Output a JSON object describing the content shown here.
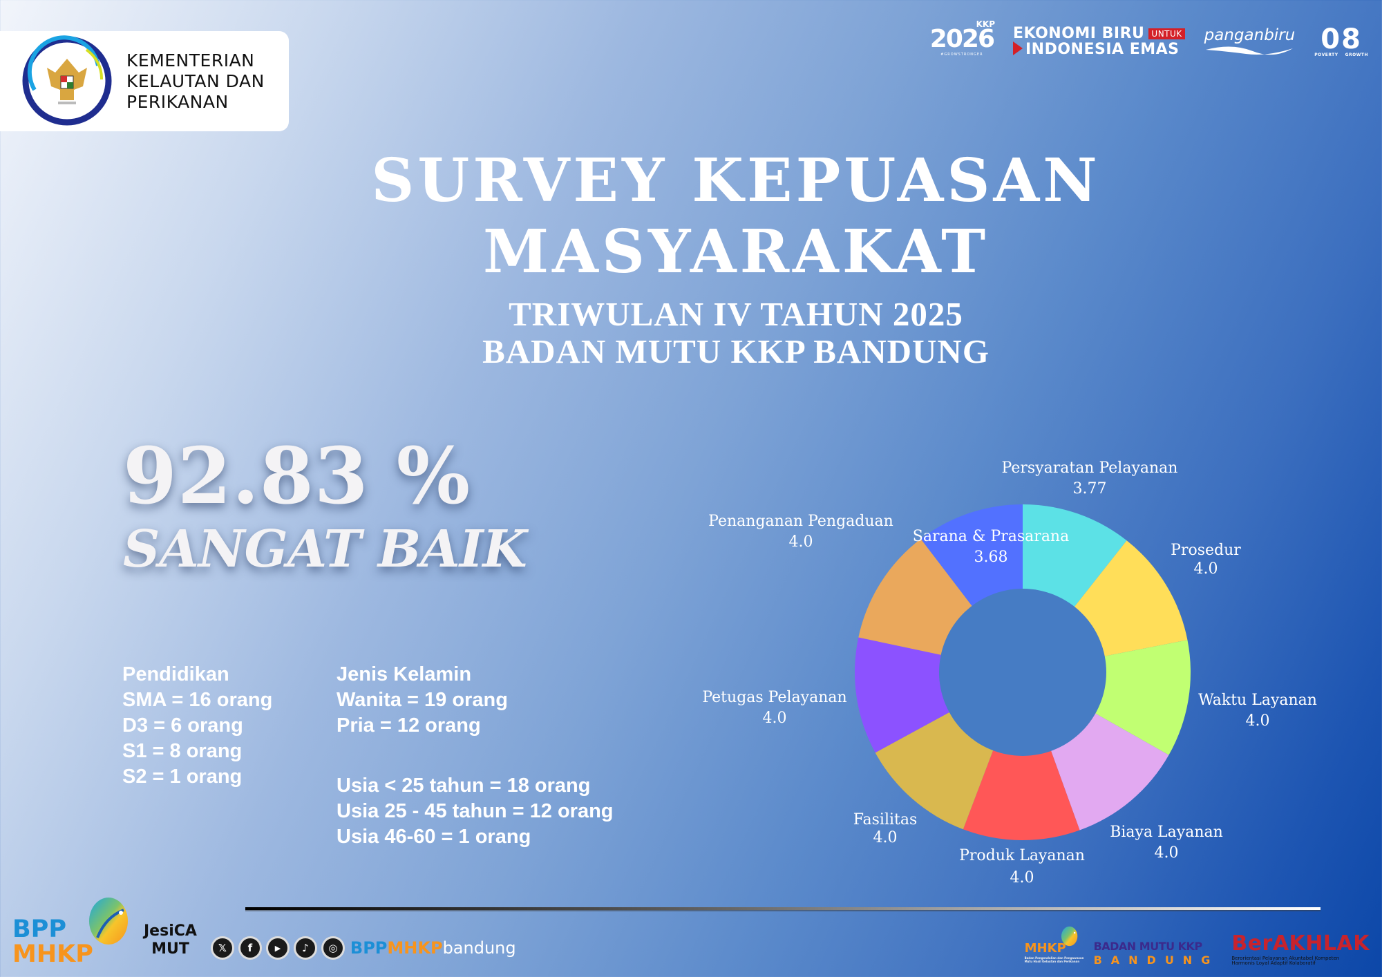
{
  "header": {
    "ministry_logo": {
      "icon": "garuda-emblem-icon",
      "lines": [
        "KEMENTERIAN",
        "KELAUTAN DAN",
        "PERIKANAN"
      ]
    },
    "partner_logos": {
      "kkp2026": {
        "label": "KKP",
        "year": "2026",
        "tagline": "#GROWSTRONGER"
      },
      "ekonomi_biru": {
        "line1": "EKONOMI BIRU",
        "badge": "UNTUK",
        "line2": "INDONESIA EMAS"
      },
      "panganbiru": {
        "label": "panganbiru"
      },
      "poverty_growth": {
        "digits": "08",
        "left": "POVERTY",
        "right": "GROWTH"
      }
    }
  },
  "title": {
    "line1": "SURVEY KEPUASAN",
    "line2": "MASYARAKAT",
    "sub1": "TRIWULAN IV TAHUN 2025",
    "sub2": "BADAN MUTU KKP BANDUNG"
  },
  "score": {
    "value": "92.83 %",
    "label": "SANGAT BAIK"
  },
  "demographics": {
    "education": {
      "heading": "Pendidikan",
      "items": [
        "SMA = 16 orang",
        "D3 = 6 orang",
        "S1 = 8 orang",
        "S2 = 1 orang"
      ]
    },
    "gender": {
      "heading": "Jenis Kelamin",
      "items": [
        "Wanita = 19 orang",
        "Pria = 12 orang"
      ]
    },
    "age": {
      "items": [
        "Usia < 25 tahun = 18 orang",
        "Usia 25 - 45 tahun = 12 orang",
        "Usia 46-60 = 1 orang"
      ]
    }
  },
  "chart_data": {
    "type": "pie",
    "variant": "donut",
    "title": "",
    "start_angle_deg": 0,
    "direction": "clockwise",
    "categories": [
      "Persyaratan Pelayanan",
      "Prosedur",
      "Waktu Layanan",
      "Biaya Layanan",
      "Produk Layanan",
      "Fasilitas",
      "Petugas Pelayanan",
      "Penanganan Pengaduan",
      "Sarana & Prasarana"
    ],
    "values": [
      3.77,
      4.0,
      4.0,
      4.0,
      4.0,
      4.0,
      4.0,
      4.0,
      3.68
    ],
    "value_labels": [
      "3.77",
      "4.0",
      "4.0",
      "4.0",
      "4.0",
      "4.0",
      "4.0",
      "4.0",
      "3.68"
    ],
    "colors": [
      "#5ce1e6",
      "#ffde59",
      "#c1ff72",
      "#e2a9f1",
      "#ff5757",
      "#d9b84f",
      "#8c52ff",
      "#eaa85c",
      "#5271ff"
    ],
    "legend": "none (labels outside slices)",
    "grid": false
  },
  "footer": {
    "bpp_logo": {
      "line1": "BPP",
      "line2": "MHKP"
    },
    "jesica_logo": {
      "line1": "JesiCA",
      "line2": "MUT"
    },
    "socials": [
      {
        "icon": "x-twitter-icon",
        "glyph": "𝕏"
      },
      {
        "icon": "facebook-icon",
        "glyph": "f"
      },
      {
        "icon": "youtube-icon",
        "glyph": "▶"
      },
      {
        "icon": "tiktok-icon",
        "glyph": "♪"
      },
      {
        "icon": "instagram-icon",
        "glyph": "◎"
      }
    ],
    "handle": {
      "part1": "BPP",
      "part2": "MHKP",
      "part3": "bandung"
    },
    "right_logos": {
      "mhkp": {
        "title": "MHKP",
        "subtitle": "Badan Pengendalian dan Pengawasan Mutu Hasil Kelautan dan Perikanan"
      },
      "badan_mutu": {
        "line1": "BADAN MUTU KKP",
        "line2": "BANDUNG"
      },
      "berakhlak": {
        "title": "BerAKHLAK",
        "tagline": "Berorientasi Pelayanan Akuntabel Kompeten Harmonis Loyal Adaptif Kolaboratif"
      }
    }
  }
}
